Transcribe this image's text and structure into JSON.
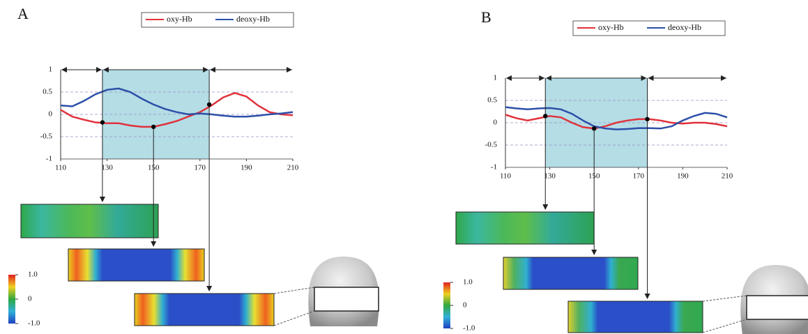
{
  "chart_data": [
    {
      "type": "line",
      "panel_label": "A",
      "x": [
        110,
        115,
        120,
        125,
        130,
        135,
        140,
        145,
        150,
        155,
        160,
        165,
        170,
        175,
        180,
        185,
        190,
        195,
        200,
        205,
        210
      ],
      "series": [
        {
          "name": "oxy-Hb",
          "color": "#e0323c",
          "values": [
            0.1,
            -0.05,
            -0.12,
            -0.18,
            -0.2,
            -0.2,
            -0.25,
            -0.28,
            -0.28,
            -0.22,
            -0.15,
            -0.05,
            0.05,
            0.2,
            0.38,
            0.48,
            0.4,
            0.2,
            0.05,
            0.0,
            -0.02
          ]
        },
        {
          "name": "deoxy-Hb",
          "color": "#2c4fa8",
          "values": [
            0.2,
            0.18,
            0.3,
            0.45,
            0.55,
            0.58,
            0.5,
            0.35,
            0.22,
            0.12,
            0.05,
            0.0,
            0.02,
            0.0,
            -0.03,
            -0.05,
            -0.05,
            -0.03,
            0.0,
            0.02,
            0.05
          ]
        }
      ],
      "xlim": [
        110,
        210
      ],
      "xticks": [
        110,
        130,
        150,
        170,
        190,
        210
      ],
      "ylim": [
        -1,
        1
      ],
      "yticks": [
        -1,
        -0.5,
        0,
        0.5,
        1
      ],
      "highlight_x": [
        128,
        174
      ],
      "points": {
        "x": [
          128,
          150,
          174
        ],
        "y": [
          -0.18,
          -0.28,
          0.22
        ]
      },
      "colorbar": {
        "lim": [
          -1,
          1
        ],
        "ticks": [
          {
            "value": 1,
            "label": "1.0"
          },
          0,
          {
            "value": -1,
            "label": "-1.0"
          }
        ]
      }
    },
    {
      "type": "line",
      "panel_label": "B",
      "x": [
        110,
        115,
        120,
        125,
        130,
        135,
        140,
        145,
        150,
        155,
        160,
        165,
        170,
        175,
        180,
        185,
        190,
        195,
        200,
        205,
        210
      ],
      "series": [
        {
          "name": "oxy-Hb",
          "color": "#e0323c",
          "values": [
            0.18,
            0.1,
            0.05,
            0.1,
            0.15,
            0.12,
            0.0,
            -0.1,
            -0.13,
            -0.08,
            0.0,
            0.05,
            0.08,
            0.08,
            0.05,
            0.0,
            -0.02,
            0.0,
            0.0,
            -0.03,
            -0.08
          ]
        },
        {
          "name": "deoxy-Hb",
          "color": "#2c4fa8",
          "values": [
            0.35,
            0.32,
            0.3,
            0.32,
            0.33,
            0.3,
            0.2,
            0.05,
            -0.08,
            -0.13,
            -0.15,
            -0.14,
            -0.12,
            -0.12,
            -0.13,
            -0.08,
            0.05,
            0.15,
            0.22,
            0.2,
            0.12
          ]
        }
      ],
      "xlim": [
        110,
        210
      ],
      "xticks": [
        110,
        130,
        150,
        170,
        190,
        210
      ],
      "ylim": [
        -1,
        1
      ],
      "yticks": [
        -1,
        -0.5,
        0,
        0.5,
        1
      ],
      "highlight_x": [
        128,
        174
      ],
      "points": {
        "x": [
          128,
          150,
          174
        ],
        "y": [
          0.15,
          -0.13,
          0.08
        ]
      },
      "colorbar": {
        "lim": [
          -1,
          1
        ],
        "ticks": [
          {
            "value": 1,
            "label": "1.0"
          },
          0,
          {
            "value": -1,
            "label": "-1.0"
          }
        ]
      }
    }
  ]
}
